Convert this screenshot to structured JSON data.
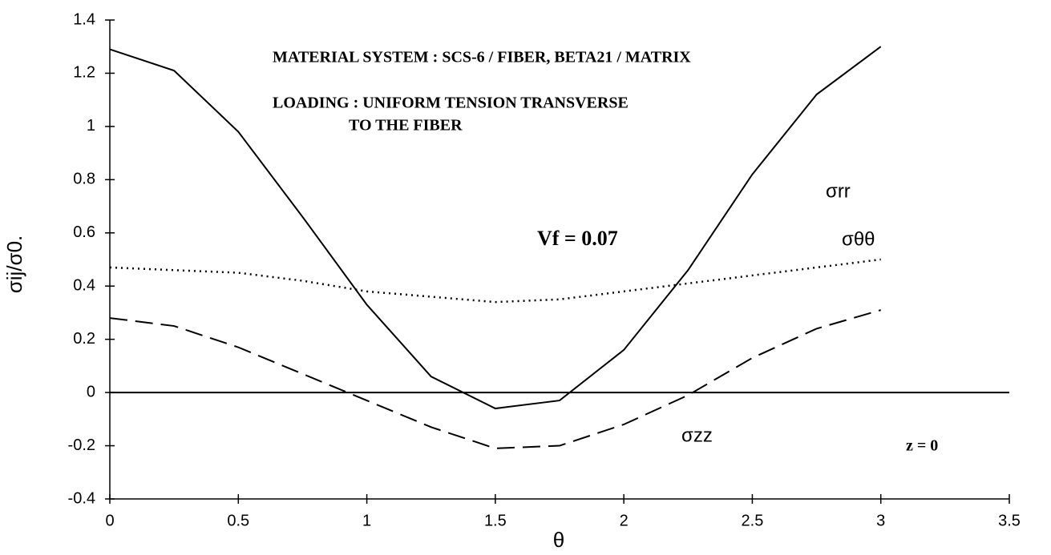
{
  "chart_data": {
    "type": "line",
    "xlabel": "θ",
    "ylabel": "σij/σ0.",
    "annotations": [
      "MATERIAL SYSTEM : SCS-6 / FIBER, BETA21 / MATRIX",
      "LOADING : UNIFORM TENSION TRANSVERSE",
      "TO THE FIBER",
      "Vf = 0.07",
      "z = 0"
    ],
    "x": [
      0,
      0.25,
      0.5,
      0.75,
      1,
      1.25,
      1.5,
      1.75,
      2,
      2.25,
      2.5,
      2.75,
      3
    ],
    "series": [
      {
        "name": "σrr",
        "color": "#000000",
        "dash": "solid",
        "values": [
          1.29,
          1.21,
          0.98,
          0.66,
          0.33,
          0.06,
          -0.06,
          -0.03,
          0.16,
          0.46,
          0.82,
          1.12,
          1.3
        ]
      },
      {
        "name": "σθθ",
        "color": "#000000",
        "dash": "dotted",
        "values": [
          0.47,
          0.46,
          0.45,
          0.42,
          0.38,
          0.36,
          0.34,
          0.35,
          0.38,
          0.41,
          0.44,
          0.47,
          0.5
        ]
      },
      {
        "name": "σzz",
        "color": "#000000",
        "dash": "dashed",
        "values": [
          0.28,
          0.25,
          0.17,
          0.07,
          -0.03,
          -0.13,
          -0.21,
          -0.2,
          -0.12,
          -0.01,
          0.13,
          0.24,
          0.31
        ]
      }
    ],
    "xlim": [
      0,
      3.5
    ],
    "xticks": [
      0,
      0.5,
      1,
      1.5,
      2,
      2.5,
      3,
      3.5
    ],
    "ylim": [
      -0.4,
      1.4
    ],
    "yticks": [
      1.4,
      1.2,
      1,
      0.8,
      0.6,
      0.4,
      0.2,
      0,
      -0.2,
      -0.4
    ],
    "grid": false
  }
}
